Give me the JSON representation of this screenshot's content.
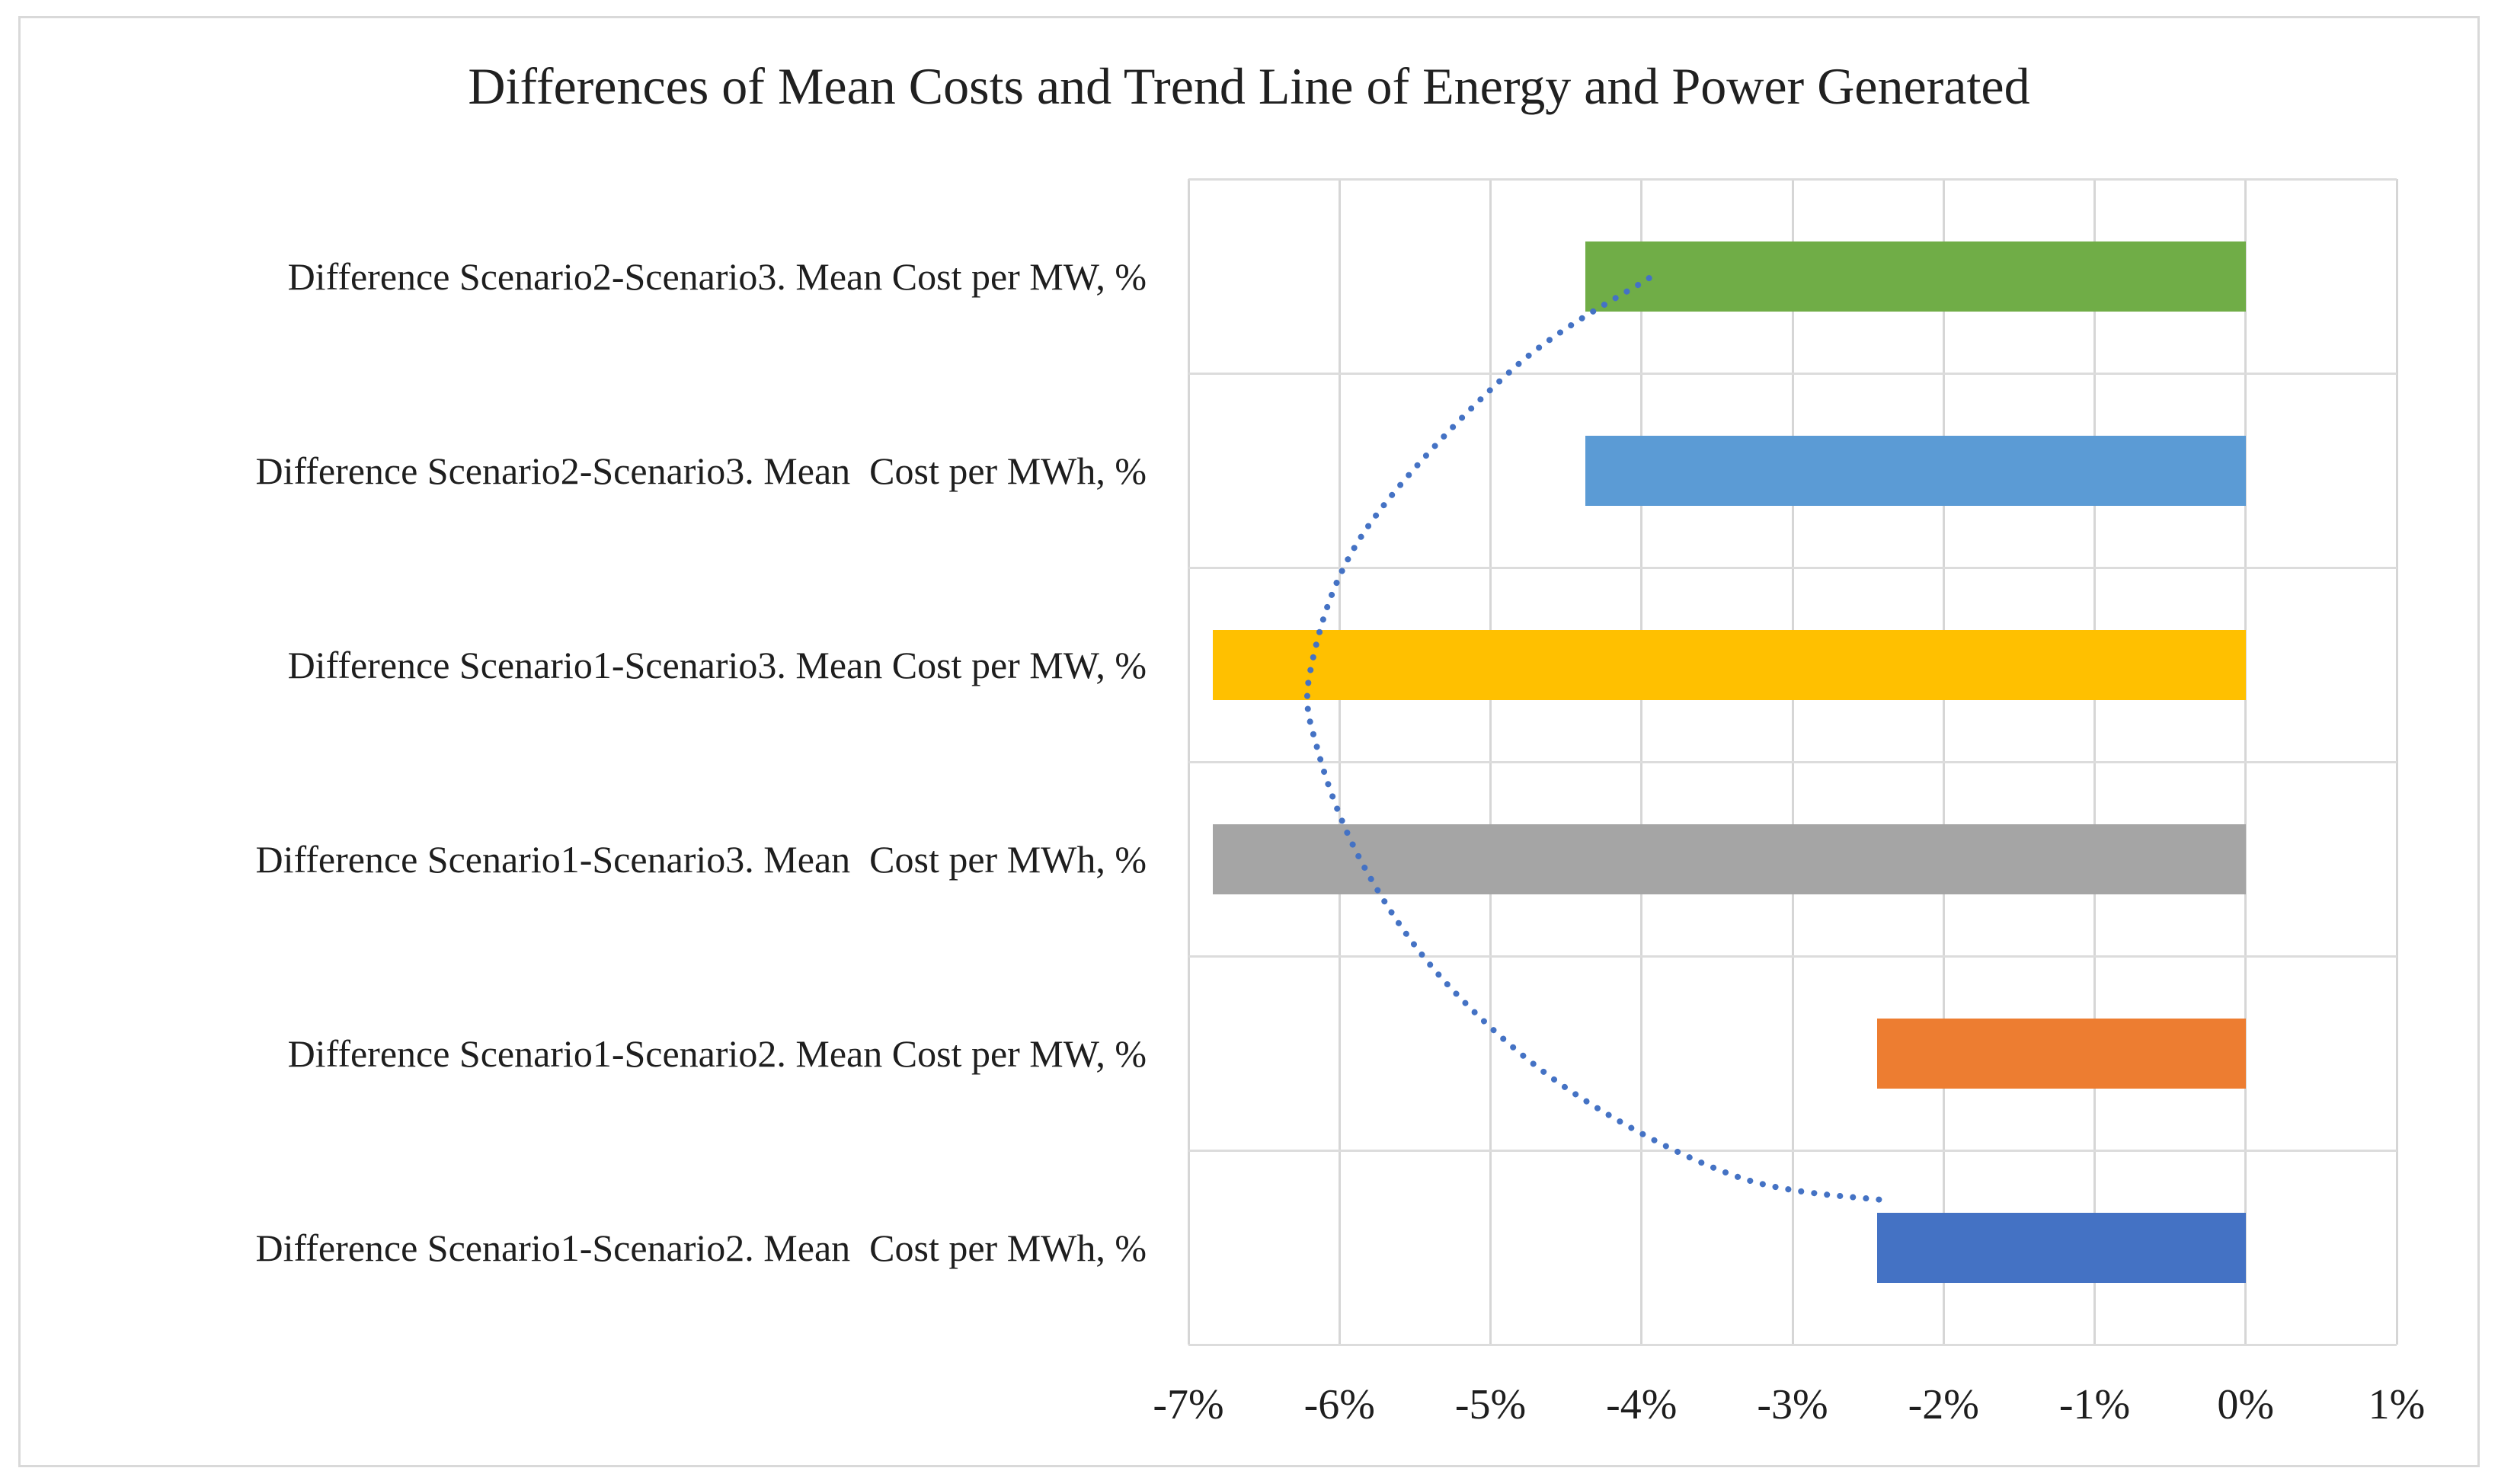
{
  "figure": {
    "title": "Differences of Mean Costs and Trend Line of Energy and Power Generated"
  },
  "chart_data": {
    "type": "bar",
    "orientation": "horizontal",
    "title": "Differences of Mean Costs and Trend Line of Energy and Power Generated",
    "categories": [
      "Difference Scenario2-Scenario3. Mean Cost per MW, %",
      "Difference Scenario2-Scenario3. Mean  Cost per MWh, %",
      "Difference Scenario1-Scenario3. Mean Cost per MW, %",
      "Difference Scenario1-Scenario3. Mean  Cost per MWh, %",
      "Difference Scenario1-Scenario2. Mean Cost per MW, %",
      "Difference Scenario1-Scenario2. Mean  Cost per MWh, %"
    ],
    "values": [
      -4.37,
      -4.37,
      -6.84,
      -6.84,
      -2.44,
      -2.44
    ],
    "bar_colors": [
      "#70AD47",
      "#5B9BD5",
      "#FFC000",
      "#A5A5A5",
      "#ED7D31",
      "#4472C4"
    ],
    "x_ticks": [
      "-7%",
      "-6%",
      "-5%",
      "-4%",
      "-3%",
      "-2%",
      "-1%",
      "0%",
      "1%"
    ],
    "xlim": [
      -7,
      1
    ],
    "xlabel": "",
    "ylabel": "",
    "grid": true,
    "legend": "none",
    "trend_line": {
      "name": "trend-line",
      "style": "dotted",
      "color": "#4472C4",
      "points_row_value": [
        [
          1.01,
          -3.95
        ],
        [
          1.47,
          -4.84
        ],
        [
          2.31,
          -5.83
        ],
        [
          3.02,
          -6.19
        ],
        [
          3.45,
          -6.14
        ],
        [
          4.05,
          -5.83
        ],
        [
          4.65,
          -5.28
        ],
        [
          5.21,
          -4.44
        ],
        [
          5.64,
          -3.35
        ],
        [
          5.76,
          -2.36
        ]
      ]
    },
    "style_colors": {
      "grid": "#D9D9D9",
      "plot_border": "#D9D9D9",
      "text": "#1e1e1e",
      "background": "#FFFFFF"
    }
  }
}
